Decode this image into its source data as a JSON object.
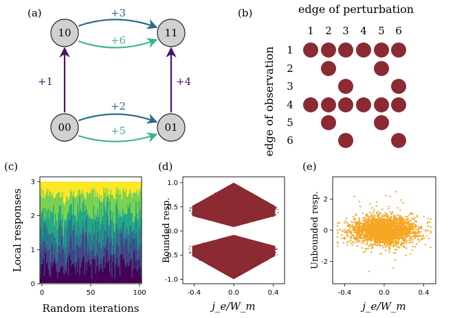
{
  "panels": {
    "a": {
      "label": "(a)",
      "nodes": [
        "10",
        "11",
        "00",
        "01"
      ],
      "edges": {
        "top_upper": "+3",
        "top_lower": "+6",
        "left": "+1",
        "right": "+4",
        "bottom_upper": "+2",
        "bottom_lower": "+5"
      },
      "colors": {
        "blue": "#2c6a8e",
        "green": "#3bb882",
        "purple": "#4b0f6b",
        "node_fill": "#d0d0d0"
      }
    },
    "b": {
      "label": "(b)",
      "title": "edge of perturbation",
      "ylabel": "edge of observation",
      "columns": [
        "1",
        "2",
        "3",
        "4",
        "5",
        "6"
      ],
      "rows": [
        "1",
        "2",
        "3",
        "4",
        "5",
        "6"
      ],
      "dot_color": "#8b2a33",
      "matrix": [
        [
          1,
          1,
          1,
          1,
          1,
          1
        ],
        [
          0,
          1,
          0,
          0,
          1,
          0
        ],
        [
          0,
          0,
          1,
          0,
          0,
          1
        ],
        [
          1,
          1,
          1,
          1,
          1,
          1
        ],
        [
          0,
          1,
          0,
          0,
          1,
          0
        ],
        [
          0,
          0,
          1,
          0,
          0,
          1
        ]
      ]
    },
    "c": {
      "label": "(c)",
      "xlabel": "Random iterations",
      "ylabel": "Local responses",
      "xticks": [
        "0",
        "50",
        "100"
      ],
      "yticks": [
        "0",
        "1",
        "2",
        "3"
      ]
    },
    "d": {
      "label": "(d)",
      "xlabel": "j_e/W_m",
      "ylabel": "Bounded resp.",
      "xticks": [
        "-0.4",
        "0.0",
        "0.4"
      ],
      "yticks": [
        "-1.0",
        "-0.5",
        "0.0",
        "0.5",
        "1.0"
      ],
      "color": "#8b2a33"
    },
    "e": {
      "label": "(e)",
      "xlabel": "j_e/W_m",
      "ylabel": "Unbounded resp.",
      "xticks": [
        "-0.4",
        "0.0",
        "0.4"
      ],
      "yticks": [
        "-2",
        "0",
        "2"
      ],
      "color": "#f5a623"
    }
  },
  "chart_data": [
    {
      "type": "bar",
      "title": "",
      "xlabel": "Random iterations",
      "ylabel": "Local responses",
      "xlim": [
        0,
        100
      ],
      "ylim": [
        0,
        3
      ],
      "stacked": true,
      "series_count": 6,
      "total_per_bar": 3
    },
    {
      "type": "scatter",
      "title": "",
      "xlabel": "j_e/W_m",
      "ylabel": "Bounded resp.",
      "xlim": [
        -0.5,
        0.5
      ],
      "ylim": [
        -1.05,
        1.05
      ]
    },
    {
      "type": "scatter",
      "title": "",
      "xlabel": "j_e/W_m",
      "ylabel": "Unbounded resp.",
      "xlim": [
        -0.5,
        0.5
      ],
      "ylim": [
        -3.2,
        3.5
      ]
    }
  ]
}
